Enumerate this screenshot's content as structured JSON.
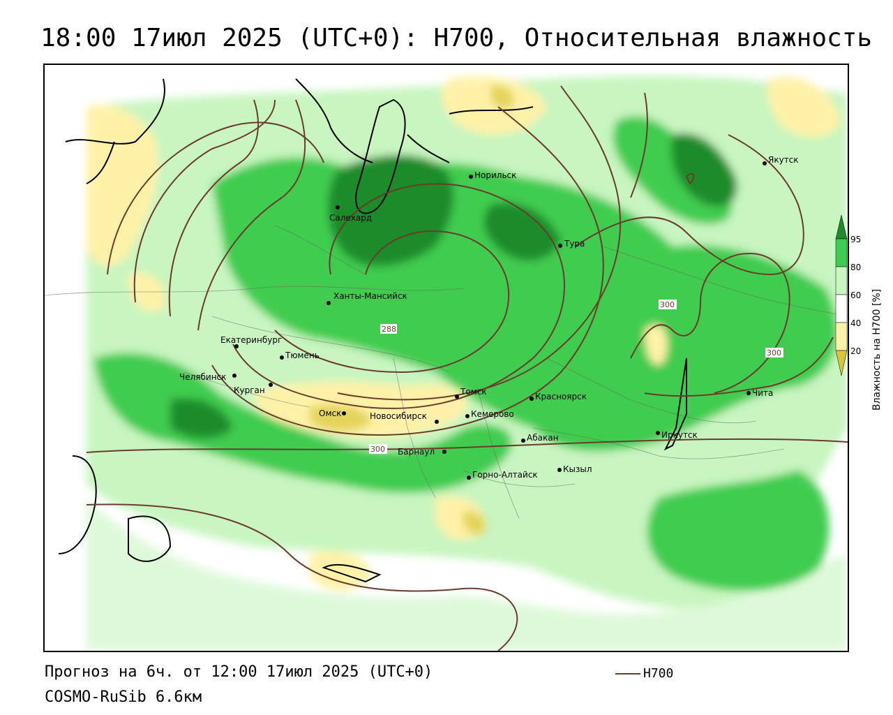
{
  "title": "18:00 17июл 2025 (UTC+0): H700, Относительная влажность",
  "footer": {
    "forecast": "Прогноз на 6ч. от 12:00 17июл 2025 (UTC+0)",
    "model": "COSMO-RuSib 6.6км",
    "contour_legend": "H700"
  },
  "colorbar": {
    "title": "Влажность на H700 [%]",
    "ticks": [
      "95",
      "80",
      "60",
      "40",
      "20"
    ],
    "colors": {
      "c95": "#1e8c2a",
      "c80": "#3fcc50",
      "c60": "#c8f5c0",
      "c40": "#ffffff",
      "c20": "#fff2a8",
      "c0": "#d8c43a"
    }
  },
  "contour_labels": [
    "288",
    "300",
    "300",
    "300"
  ],
  "cities": [
    {
      "name": "Салехард"
    },
    {
      "name": "Норильск"
    },
    {
      "name": "Якутск"
    },
    {
      "name": "Тура"
    },
    {
      "name": "Ханты-Мансийск"
    },
    {
      "name": "Екатеринбург"
    },
    {
      "name": "Тюмень"
    },
    {
      "name": "Челябинск"
    },
    {
      "name": "Курган"
    },
    {
      "name": "Омск"
    },
    {
      "name": "Новосибирск"
    },
    {
      "name": "Томск"
    },
    {
      "name": "Кемерово"
    },
    {
      "name": "Красноярск"
    },
    {
      "name": "Барнаул"
    },
    {
      "name": "Абакан"
    },
    {
      "name": "Горно-Алтайск"
    },
    {
      "name": "Кызыл"
    },
    {
      "name": "Иркутск"
    },
    {
      "name": "Чита"
    }
  ]
}
